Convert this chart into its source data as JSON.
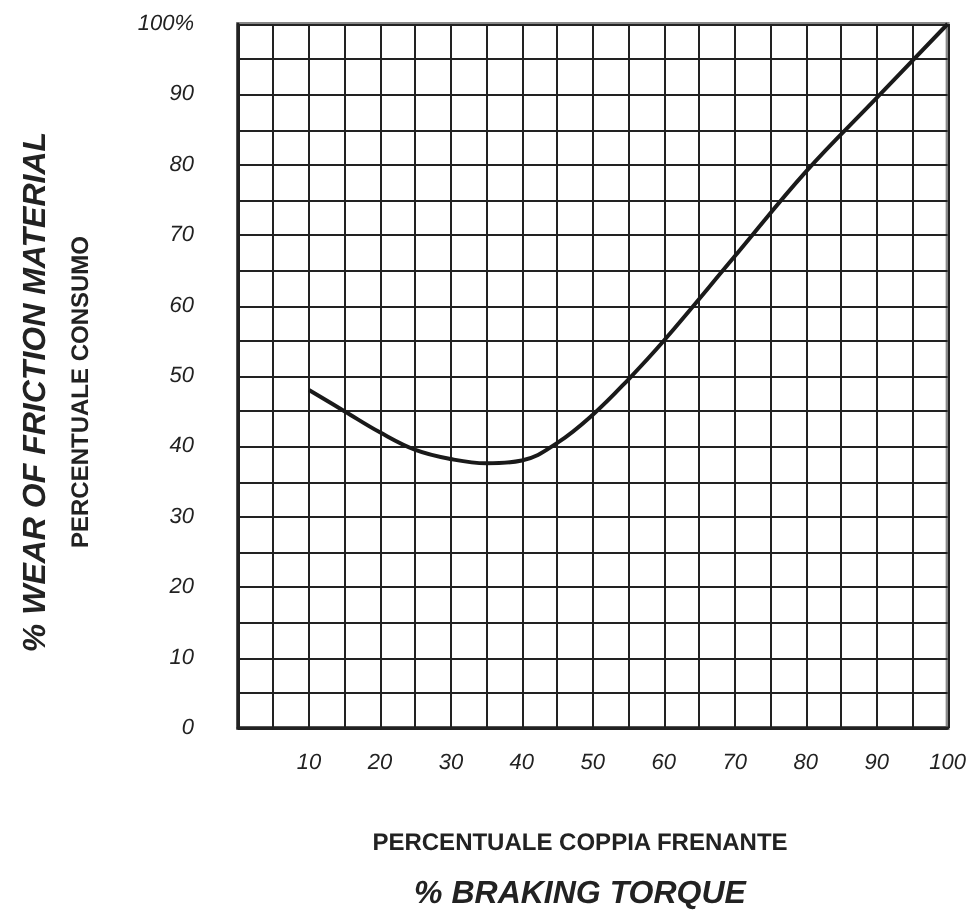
{
  "chart_data": {
    "type": "line",
    "xlabel": "PERCENTUALE COPPIA FRENANTE\n% BRAKING TORQUE",
    "ylabel": "% WEAR OF FRICTION MATERIAL\nPERCENTUALE CONSUMO",
    "x": [
      10,
      15,
      20,
      25,
      30,
      35,
      40,
      45,
      50,
      55,
      60,
      70,
      80,
      90,
      100
    ],
    "series": [
      {
        "color": "#1a1a1a",
        "values": [
          48,
          45,
          42,
          39.5,
          38.2,
          37.6,
          38,
          40.5,
          44.5,
          49.5,
          55,
          67,
          79,
          89.5,
          100
        ]
      }
    ],
    "xlim": [
      0,
      100
    ],
    "ylim": [
      0,
      100
    ],
    "xticks": [
      10,
      20,
      30,
      40,
      50,
      60,
      70,
      80,
      90,
      100
    ],
    "yticks": [
      0,
      10,
      20,
      30,
      40,
      50,
      60,
      70,
      80,
      90,
      {
        "value": 100,
        "label": "100%"
      }
    ],
    "grid": true,
    "marker": "none",
    "line_style": "solid"
  }
}
